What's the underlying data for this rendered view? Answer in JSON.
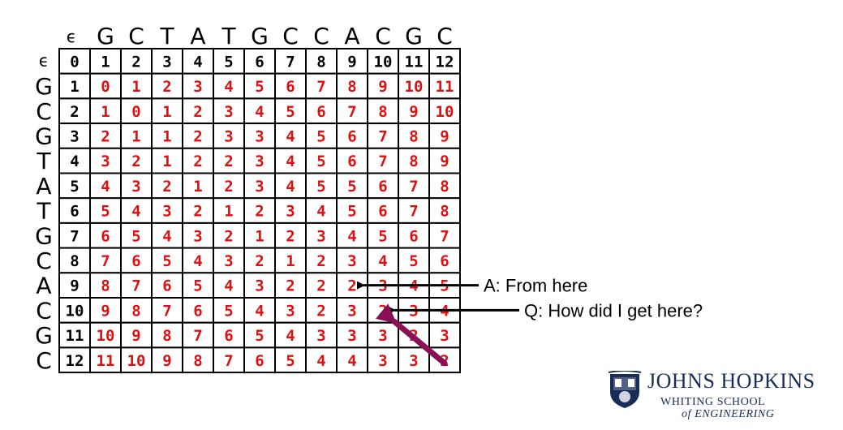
{
  "top_sequence": [
    "ϵ",
    "G",
    "C",
    "T",
    "A",
    "T",
    "G",
    "C",
    "C",
    "A",
    "C",
    "G",
    "C"
  ],
  "left_sequence": [
    "ϵ",
    "G",
    "C",
    "G",
    "T",
    "A",
    "T",
    "G",
    "C",
    "A",
    "C",
    "G",
    "C"
  ],
  "matrix": [
    [
      0,
      1,
      2,
      3,
      4,
      5,
      6,
      7,
      8,
      9,
      10,
      11,
      12
    ],
    [
      1,
      0,
      1,
      2,
      3,
      4,
      5,
      6,
      7,
      8,
      9,
      10,
      11
    ],
    [
      2,
      1,
      0,
      1,
      2,
      3,
      4,
      5,
      6,
      7,
      8,
      9,
      10
    ],
    [
      3,
      2,
      1,
      1,
      2,
      3,
      3,
      4,
      5,
      6,
      7,
      8,
      9
    ],
    [
      4,
      3,
      2,
      1,
      2,
      2,
      3,
      4,
      5,
      6,
      7,
      8,
      9
    ],
    [
      5,
      4,
      3,
      2,
      1,
      2,
      3,
      4,
      5,
      5,
      6,
      7,
      8
    ],
    [
      6,
      5,
      4,
      3,
      2,
      1,
      2,
      3,
      4,
      5,
      6,
      7,
      8
    ],
    [
      7,
      6,
      5,
      4,
      3,
      2,
      1,
      2,
      3,
      4,
      5,
      6,
      7
    ],
    [
      8,
      7,
      6,
      5,
      4,
      3,
      2,
      1,
      2,
      3,
      4,
      5,
      6
    ],
    [
      9,
      8,
      7,
      6,
      5,
      4,
      3,
      2,
      2,
      2,
      3,
      4,
      5
    ],
    [
      10,
      9,
      8,
      7,
      6,
      5,
      4,
      3,
      2,
      3,
      2,
      3,
      4
    ],
    [
      11,
      10,
      9,
      8,
      7,
      6,
      5,
      4,
      3,
      3,
      3,
      2,
      3
    ],
    [
      12,
      11,
      10,
      9,
      8,
      7,
      6,
      5,
      4,
      4,
      3,
      3,
      2
    ]
  ],
  "annotations": {
    "answer": "A: From here",
    "question": "Q: How did I get here?",
    "answer_cell": [
      9,
      9
    ],
    "question_cell": [
      10,
      10
    ],
    "start_cell": [
      12,
      12
    ],
    "arrow_color": "#8b0f56"
  },
  "logo": {
    "name": "JOHNS HOPKINS",
    "line1": "WHITING SCHOOL",
    "line2": "of ENGINEERING",
    "color": "#1a2c5a"
  },
  "colors": {
    "border_values": "#000000",
    "inner_values": "#e01010"
  }
}
